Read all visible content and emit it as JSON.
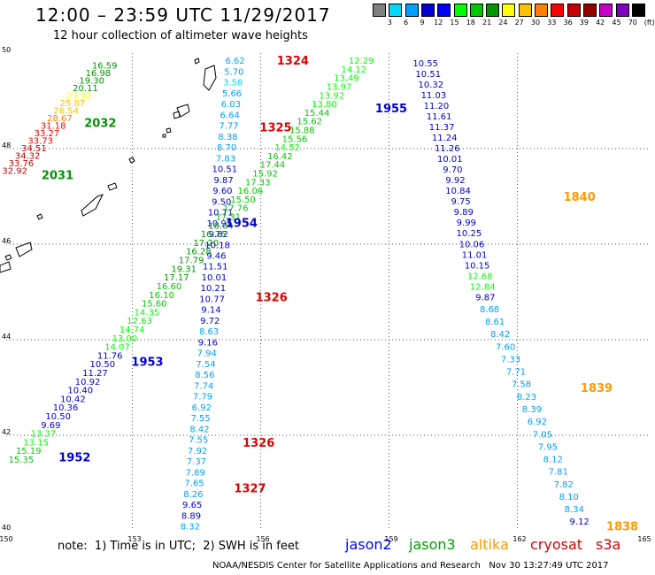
{
  "title": "12:00 – 23:59 UTC 11/29/2017",
  "subtitle": "12 hour collection of altimeter wave heights",
  "scale": {
    "colors": [
      "#808080",
      "#00d8ff",
      "#00a0ff",
      "#0000d0",
      "#0000ff",
      "#00ff00",
      "#00c800",
      "#009600",
      "#ffff00",
      "#ffc000",
      "#ff8000",
      "#ff0000",
      "#c80000",
      "#960000",
      "#c800c8",
      "#8000c0",
      "#000000"
    ],
    "labels": [
      "3",
      "6",
      "9",
      "12",
      "15",
      "18",
      "21",
      "24",
      "27",
      "30",
      "33",
      "36",
      "39",
      "42",
      "45",
      "70",
      "(ft)"
    ]
  },
  "note": "note:  1) Time is in UTC;  2) SWH is in feet",
  "satellites": [
    {
      "name": "jason2",
      "color": "#0000ff"
    },
    {
      "name": "jason3",
      "color": "#00a000"
    },
    {
      "name": "altika",
      "color": "#ff9900"
    },
    {
      "name": "cryosat",
      "color": "#dd0000"
    },
    {
      "name": "s3a",
      "color": "#dd0000"
    }
  ],
  "credit": "NOAA/NESDIS Center for Satellite Applications and Research   Nov 30 13:27:49 UTC 2017",
  "axes": {
    "lat_labels": [
      "50",
      "48",
      "46",
      "44",
      "42",
      "40"
    ],
    "lon_labels": [
      "150",
      "153",
      "156",
      "159",
      "162",
      "165"
    ]
  },
  "time_labels": [
    {
      "text": "1324",
      "color": "#dd0000",
      "lon": 156.7,
      "lat": 49.85
    },
    {
      "text": "1325",
      "color": "#dd0000",
      "lon": 156.3,
      "lat": 48.45
    },
    {
      "text": "1955",
      "color": "#0000d0",
      "lon": 159.0,
      "lat": 48.85
    },
    {
      "text": "2032",
      "color": "#009600",
      "lon": 152.2,
      "lat": 48.55
    },
    {
      "text": "2031",
      "color": "#009600",
      "lon": 151.2,
      "lat": 47.45
    },
    {
      "text": "1840",
      "color": "#ff9900",
      "lon": 163.4,
      "lat": 47.0
    },
    {
      "text": "1954",
      "color": "#0000d0",
      "lon": 155.5,
      "lat": 46.45
    },
    {
      "text": "1326",
      "color": "#dd0000",
      "lon": 156.2,
      "lat": 44.9
    },
    {
      "text": "1953",
      "color": "#0000d0",
      "lon": 153.3,
      "lat": 43.55
    },
    {
      "text": "1839",
      "color": "#ff9900",
      "lon": 163.8,
      "lat": 43.0
    },
    {
      "text": "1326",
      "color": "#dd0000",
      "lon": 155.9,
      "lat": 41.85
    },
    {
      "text": "1952",
      "color": "#0000d0",
      "lon": 151.6,
      "lat": 41.55
    },
    {
      "text": "1327",
      "color": "#dd0000",
      "lon": 155.7,
      "lat": 40.9
    },
    {
      "text": "1838",
      "color": "#ff9900",
      "lon": 164.4,
      "lat": 40.1
    }
  ],
  "tracks": [
    {
      "name": "altika-track-1",
      "lon0": 155.35,
      "lon1": 154.3,
      "lat0": 49.85,
      "lat1": 40.1,
      "values": [
        "6.62",
        "5.70",
        "3.58",
        "5.66",
        "6.03",
        "6.64",
        "7.77",
        "8.38",
        "8.70",
        "7.83",
        "10.51",
        "9.87",
        "9.60",
        "9.50",
        "10.71",
        "10.95",
        "9.82",
        "10.18",
        "9.46",
        "11.51",
        "10.01",
        "10.21",
        "10.77",
        "9.14",
        "9.72",
        "8.63",
        "9.16",
        "7.94",
        "7.54",
        "8.56",
        "7.74",
        "7.79",
        "6.92",
        "7.55",
        "8.42",
        "7.55",
        "7.92",
        "7.37",
        "7.89",
        "7.65",
        "8.26",
        "9.65",
        "8.89",
        "8.32"
      ],
      "colors": [
        "#00a0ff",
        "#00a0ff",
        "#00d8ff",
        "#00a0ff",
        "#00a0ff",
        "#00a0ff",
        "#00a0ff",
        "#00a0ff",
        "#00a0ff",
        "#00a0ff",
        "#0000d0",
        "#0000d0",
        "#0000d0",
        "#0000d0",
        "#0000d0",
        "#0000d0",
        "#0000d0",
        "#0000d0",
        "#0000d0",
        "#0000d0",
        "#0000d0",
        "#0000d0",
        "#0000d0",
        "#0000d0",
        "#0000d0",
        "#00a0ff",
        "#0000d0",
        "#00a0ff",
        "#00a0ff",
        "#00a0ff",
        "#00a0ff",
        "#00a0ff",
        "#00a0ff",
        "#00a0ff",
        "#00a0ff",
        "#00a0ff",
        "#00a0ff",
        "#00a0ff",
        "#00a0ff",
        "#00a0ff",
        "#00a0ff",
        "#0000d0",
        "#0000d0",
        "#00a0ff"
      ]
    },
    {
      "name": "jason3-track-1",
      "lon0": 158.3,
      "lon1": 150.35,
      "lat0": 49.85,
      "lat1": 41.5,
      "values": [
        "12.29",
        "14.12",
        "13.49",
        "13.97",
        "13.92",
        "13.80",
        "15.44",
        "15.62",
        "15.88",
        "15.56",
        "14.52",
        "16.42",
        "17.44",
        "15.92",
        "17.33",
        "16.06",
        "15.50",
        "17.76",
        "17.31",
        "18.04",
        "16.76",
        "17.20",
        "16.28",
        "17.79",
        "19.31",
        "17.17",
        "16.60",
        "16.10",
        "15.60",
        "14.35",
        "12.63",
        "14.74",
        "13.00",
        "14.07",
        "11.76",
        "10.50",
        "11.27",
        "10.92",
        "10.40",
        "10.42",
        "10.36",
        "10.50",
        "9.69",
        "13.37",
        "13.15",
        "15.19",
        "15.35"
      ],
      "colors": [
        "#00ff00",
        "#00ff00",
        "#00ff00",
        "#00ff00",
        "#00ff00",
        "#00ff00",
        "#00c800",
        "#00c800",
        "#00c800",
        "#00c800",
        "#00ff00",
        "#00c800",
        "#00c800",
        "#00c800",
        "#00c800",
        "#00c800",
        "#00c800",
        "#00c800",
        "#00c800",
        "#009600",
        "#009600",
        "#009600",
        "#009600",
        "#009600",
        "#009600",
        "#009600",
        "#00c800",
        "#00c800",
        "#00c800",
        "#00ff00",
        "#00ff00",
        "#00ff00",
        "#00ff00",
        "#00ff00",
        "#0000d0",
        "#0000d0",
        "#0000d0",
        "#0000d0",
        "#0000d0",
        "#0000d0",
        "#0000d0",
        "#0000d0",
        "#0000d0",
        "#00ff00",
        "#00ff00",
        "#00c800",
        "#00c800"
      ]
    },
    {
      "name": "jason3-track-2",
      "lon0": 152.3,
      "lon1": 150.2,
      "lat0": 49.75,
      "lat1": 47.55,
      "values": [
        "16.59",
        "16.98",
        "19.30",
        "20.11",
        "23.92",
        "25.87",
        "26.54",
        "28.67",
        "31.18",
        "33.27",
        "33.73",
        "34.51",
        "34.32",
        "33.76",
        "32.92"
      ],
      "colors": [
        "#009600",
        "#009600",
        "#009600",
        "#009600",
        "#ffff00",
        "#ffc000",
        "#ffc000",
        "#ff8000",
        "#ff0000",
        "#ff0000",
        "#ff0000",
        "#c80000",
        "#c80000",
        "#c80000",
        "#c80000"
      ],
      "centered": true
    },
    {
      "name": "jason2-track-1",
      "lon0": 159.8,
      "lon1": 161.2,
      "lat0": 49.8,
      "lat1": 44.9,
      "values": [
        "10.55",
        "10.51",
        "10.32",
        "11.03",
        "11.20",
        "11.61",
        "11.37",
        "11.24",
        "11.26",
        "10.01",
        "9.70",
        "9.92",
        "10.84",
        "9.75",
        "9.89",
        "9.99",
        "10.25",
        "10.06",
        "11.01",
        "10.15",
        "12.68",
        "12.84",
        "9.87"
      ],
      "colors": [
        "#0000d0",
        "#0000d0",
        "#0000d0",
        "#0000d0",
        "#0000d0",
        "#0000d0",
        "#0000d0",
        "#0000d0",
        "#0000d0",
        "#0000d0",
        "#0000d0",
        "#0000d0",
        "#0000d0",
        "#0000d0",
        "#0000d0",
        "#0000d0",
        "#0000d0",
        "#0000d0",
        "#0000d0",
        "#0000d0",
        "#00ff00",
        "#00ff00",
        "#0000d0"
      ]
    },
    {
      "name": "altika-track-2",
      "lon0": 161.3,
      "lon1": 163.4,
      "lat0": 44.65,
      "lat1": 40.2,
      "values": [
        "8.68",
        "8.61",
        "8.42",
        "7.60",
        "7.33",
        "7.71",
        "7.58",
        "8.23",
        "8.39",
        "6.92",
        "7.05",
        "7.95",
        "8.12",
        "7.81",
        "7.82",
        "8.10",
        "8.34",
        "9.12"
      ],
      "colors": [
        "#00a0ff",
        "#00a0ff",
        "#00a0ff",
        "#00a0ff",
        "#00a0ff",
        "#00a0ff",
        "#00a0ff",
        "#00a0ff",
        "#00a0ff",
        "#00a0ff",
        "#00a0ff",
        "#00a0ff",
        "#00a0ff",
        "#00a0ff",
        "#00a0ff",
        "#00a0ff",
        "#00a0ff",
        "#0000d0"
      ]
    }
  ]
}
